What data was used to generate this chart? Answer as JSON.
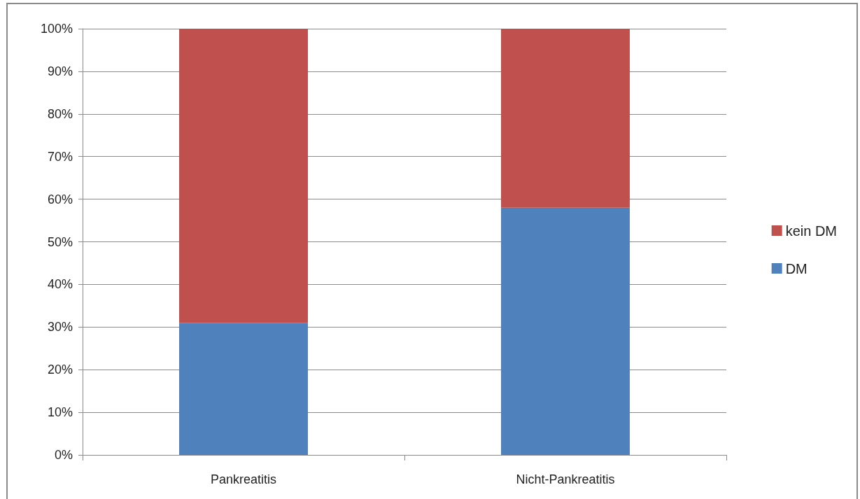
{
  "chart_data": {
    "type": "bar",
    "stacked": true,
    "categories": [
      "Pankreatitis",
      "Nicht-Pankreatitis"
    ],
    "series": [
      {
        "name": "DM",
        "color": "#4f81bd",
        "values": [
          31,
          58
        ]
      },
      {
        "name": "kein DM",
        "color": "#c0504d",
        "values": [
          69,
          42
        ]
      }
    ],
    "ylim": [
      0,
      100
    ],
    "yticks": [
      {
        "value": 0,
        "label": "0%"
      },
      {
        "value": 10,
        "label": "10%"
      },
      {
        "value": 20,
        "label": "20%"
      },
      {
        "value": 30,
        "label": "30%"
      },
      {
        "value": 40,
        "label": "40%"
      },
      {
        "value": 50,
        "label": "50%"
      },
      {
        "value": 60,
        "label": "60%"
      },
      {
        "value": 70,
        "label": "70%"
      },
      {
        "value": 80,
        "label": "80%"
      },
      {
        "value": 90,
        "label": "90%"
      },
      {
        "value": 100,
        "label": "100%"
      }
    ],
    "grid": "y",
    "legend": "right"
  }
}
